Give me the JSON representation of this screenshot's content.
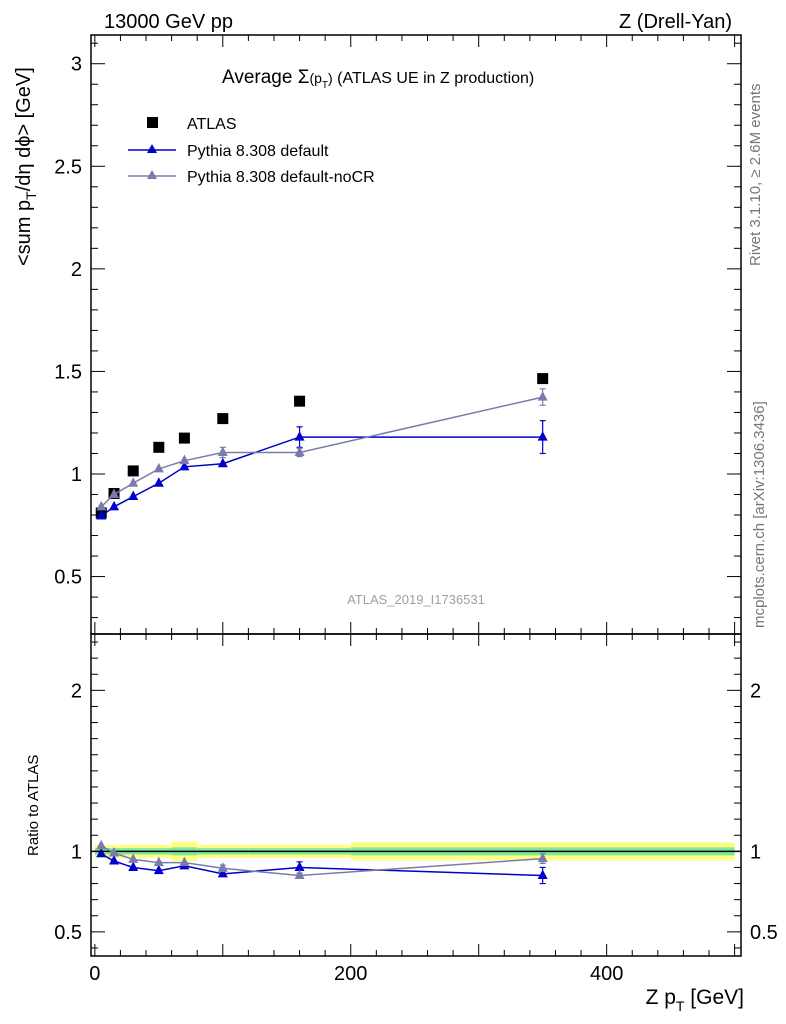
{
  "header": {
    "left": "13000 GeV pp",
    "right": "Z (Drell-Yan)"
  },
  "plot_title": {
    "prefix": "Average ",
    "sigma": "Σ",
    "paren_open": "(p",
    "paren_sub": "T",
    "paren_close": ")",
    "suffix": " (ATLAS UE in Z production)"
  },
  "side_labels": {
    "rivet": "Rivet 3.1.10, ≥ 2.6M events",
    "mcplots": "mcplots.cern.ch [arXiv:1306.3436]"
  },
  "watermark": "ATLAS_2019_I1736531",
  "axis_labels": {
    "y_main_a": "<sum p",
    "y_main_sub": "T",
    "y_main_b": "/dη dϕ> [GeV]",
    "y_ratio": "Ratio to ATLAS",
    "x_a": "Z p",
    "x_sub": "T",
    "x_b": " [GeV]"
  },
  "legend": [
    {
      "label": "ATLAS",
      "marker": "square",
      "color": "#000000"
    },
    {
      "label": "Pythia 8.308 default",
      "marker": "triangle",
      "color": "#0000cc"
    },
    {
      "label": "Pythia 8.308 default-noCR",
      "marker": "triangle",
      "color": "#7b7bab"
    }
  ],
  "chart_data": [
    {
      "type": "scatter",
      "panel": "main",
      "x_label": "Z pT [GeV]",
      "y_label": "<sum pT/dη dϕ> [GeV]",
      "xlim": [
        -3,
        505
      ],
      "ylim": [
        0.22,
        3.14
      ],
      "x_ticks": [
        0,
        200,
        400
      ],
      "y_ticks": [
        0.5,
        1,
        1.5,
        2,
        2.5,
        3
      ],
      "y_tick_labels": [
        "0.5",
        "1",
        "1.5",
        "2",
        "2.5",
        "3"
      ],
      "series": [
        {
          "name": "ATLAS",
          "style": "markers",
          "color": "#000000",
          "points": [
            {
              "x": 5,
              "y": 0.81
            },
            {
              "x": 15,
              "y": 0.905
            },
            {
              "x": 30,
              "y": 1.015
            },
            {
              "x": 50,
              "y": 1.13
            },
            {
              "x": 70,
              "y": 1.175
            },
            {
              "x": 100,
              "y": 1.27
            },
            {
              "x": 160,
              "y": 1.355
            },
            {
              "x": 350,
              "y": 1.465
            }
          ]
        },
        {
          "name": "Pythia 8.308 default",
          "style": "line",
          "color": "#0000cc",
          "points": [
            {
              "x": 5,
              "y": 0.795
            },
            {
              "x": 15,
              "y": 0.84
            },
            {
              "x": 30,
              "y": 0.89
            },
            {
              "x": 50,
              "y": 0.955
            },
            {
              "x": 70,
              "y": 1.035
            },
            {
              "x": 100,
              "y": 1.05
            },
            {
              "x": 160,
              "y": 1.18,
              "err": 0.05
            },
            {
              "x": 350,
              "y": 1.18,
              "err": 0.08
            }
          ]
        },
        {
          "name": "Pythia 8.308 default-noCR",
          "style": "line",
          "color": "#7b7bab",
          "points": [
            {
              "x": 5,
              "y": 0.84
            },
            {
              "x": 15,
              "y": 0.9
            },
            {
              "x": 30,
              "y": 0.955
            },
            {
              "x": 50,
              "y": 1.025
            },
            {
              "x": 70,
              "y": 1.065
            },
            {
              "x": 100,
              "y": 1.105,
              "err": 0.025
            },
            {
              "x": 160,
              "y": 1.105,
              "err": 0.02
            },
            {
              "x": 350,
              "y": 1.375,
              "err": 0.04
            }
          ]
        }
      ]
    },
    {
      "type": "scatter",
      "panel": "ratio",
      "x_label": "Z pT [GeV]",
      "y_label": "Ratio to ATLAS",
      "xlim": [
        -3,
        505
      ],
      "ylim": [
        0.35,
        2.35
      ],
      "x_ticks": [
        0,
        200,
        400
      ],
      "x_tick_labels": [
        "0",
        "200",
        "400"
      ],
      "y_ticks": [
        0.5,
        1,
        2
      ],
      "y_tick_labels": [
        "0.5",
        "1",
        "2"
      ],
      "reference_band": {
        "color_stat": "#7fe8a0",
        "color_syst": "#ffff80",
        "bins": [
          {
            "x0": 0,
            "x1": 10,
            "stat": 0.02,
            "syst": 0.04
          },
          {
            "x0": 10,
            "x1": 20,
            "stat": 0.02,
            "syst": 0.04
          },
          {
            "x0": 20,
            "x1": 40,
            "stat": 0.02,
            "syst": 0.04
          },
          {
            "x0": 40,
            "x1": 60,
            "stat": 0.02,
            "syst": 0.04
          },
          {
            "x0": 60,
            "x1": 80,
            "stat": 0.025,
            "syst": 0.06
          },
          {
            "x0": 80,
            "x1": 120,
            "stat": 0.02,
            "syst": 0.04
          },
          {
            "x0": 120,
            "x1": 200,
            "stat": 0.02,
            "syst": 0.04
          },
          {
            "x0": 200,
            "x1": 500,
            "stat": 0.025,
            "syst": 0.055
          }
        ]
      },
      "series": [
        {
          "name": "Pythia 8.308 default",
          "style": "line",
          "color": "#0000cc",
          "points": [
            {
              "x": 5,
              "y": 0.985
            },
            {
              "x": 15,
              "y": 0.94
            },
            {
              "x": 30,
              "y": 0.9
            },
            {
              "x": 50,
              "y": 0.88
            },
            {
              "x": 70,
              "y": 0.91
            },
            {
              "x": 100,
              "y": 0.86
            },
            {
              "x": 160,
              "y": 0.9,
              "err": 0.035
            },
            {
              "x": 350,
              "y": 0.85,
              "err": 0.05
            }
          ]
        },
        {
          "name": "Pythia 8.308 default-noCR",
          "style": "line",
          "color": "#7b7bab",
          "points": [
            {
              "x": 5,
              "y": 1.035
            },
            {
              "x": 15,
              "y": 0.99
            },
            {
              "x": 30,
              "y": 0.95
            },
            {
              "x": 50,
              "y": 0.93
            },
            {
              "x": 70,
              "y": 0.93
            },
            {
              "x": 100,
              "y": 0.895,
              "err": 0.02
            },
            {
              "x": 160,
              "y": 0.85,
              "err": 0.015
            },
            {
              "x": 350,
              "y": 0.955,
              "err": 0.03
            }
          ]
        }
      ]
    }
  ]
}
